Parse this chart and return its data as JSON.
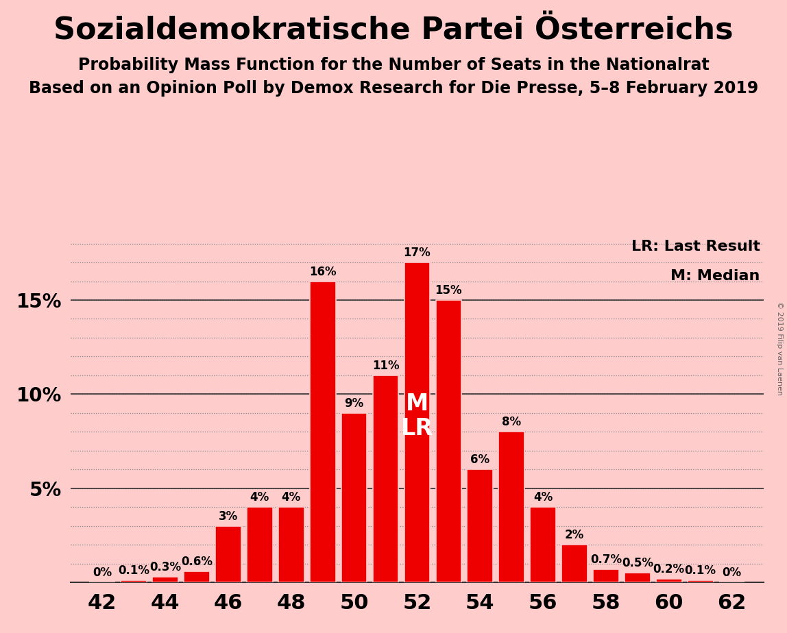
{
  "title": "Sozialdemokratische Partei Österreichs",
  "subtitle1": "Probability Mass Function for the Number of Seats in the Nationalrat",
  "subtitle2": "Based on an Opinion Poll by Demox Research for Die Presse, 5–8 February 2019",
  "copyright": "© 2019 Filip van Laenen",
  "legend_line1": "LR: Last Result",
  "legend_line2": "M: Median",
  "ml_label": "M\nLR",
  "ml_seat": 52,
  "seats": [
    42,
    43,
    44,
    45,
    46,
    47,
    48,
    49,
    50,
    51,
    52,
    53,
    54,
    55,
    56,
    57,
    58,
    59,
    60,
    61,
    62
  ],
  "values": [
    0.0,
    0.1,
    0.3,
    0.6,
    3.0,
    4.0,
    4.0,
    16.0,
    9.0,
    11.0,
    17.0,
    15.0,
    6.0,
    8.0,
    4.0,
    2.0,
    0.7,
    0.5,
    0.2,
    0.1,
    0.0
  ],
  "bar_color": "#ee0000",
  "background_color": "#ffcccc",
  "text_color": "#000000",
  "grid_color": "#888888",
  "spine_color": "#333333",
  "copyright_color": "#666666",
  "ylim": [
    0,
    18.5
  ],
  "xlim": [
    41.0,
    63.0
  ],
  "xticks": [
    42,
    44,
    46,
    48,
    50,
    52,
    54,
    56,
    58,
    60,
    62
  ],
  "ytick_positions": [
    5,
    10,
    15
  ],
  "ytick_labels": [
    "5%",
    "10%",
    "15%"
  ],
  "title_fontsize": 32,
  "subtitle1_fontsize": 17,
  "subtitle2_fontsize": 17,
  "bar_label_fontsize": 12,
  "ytick_fontsize": 20,
  "xtick_fontsize": 22,
  "legend_fontsize": 16,
  "ml_fontsize": 24,
  "bar_width": 0.82
}
